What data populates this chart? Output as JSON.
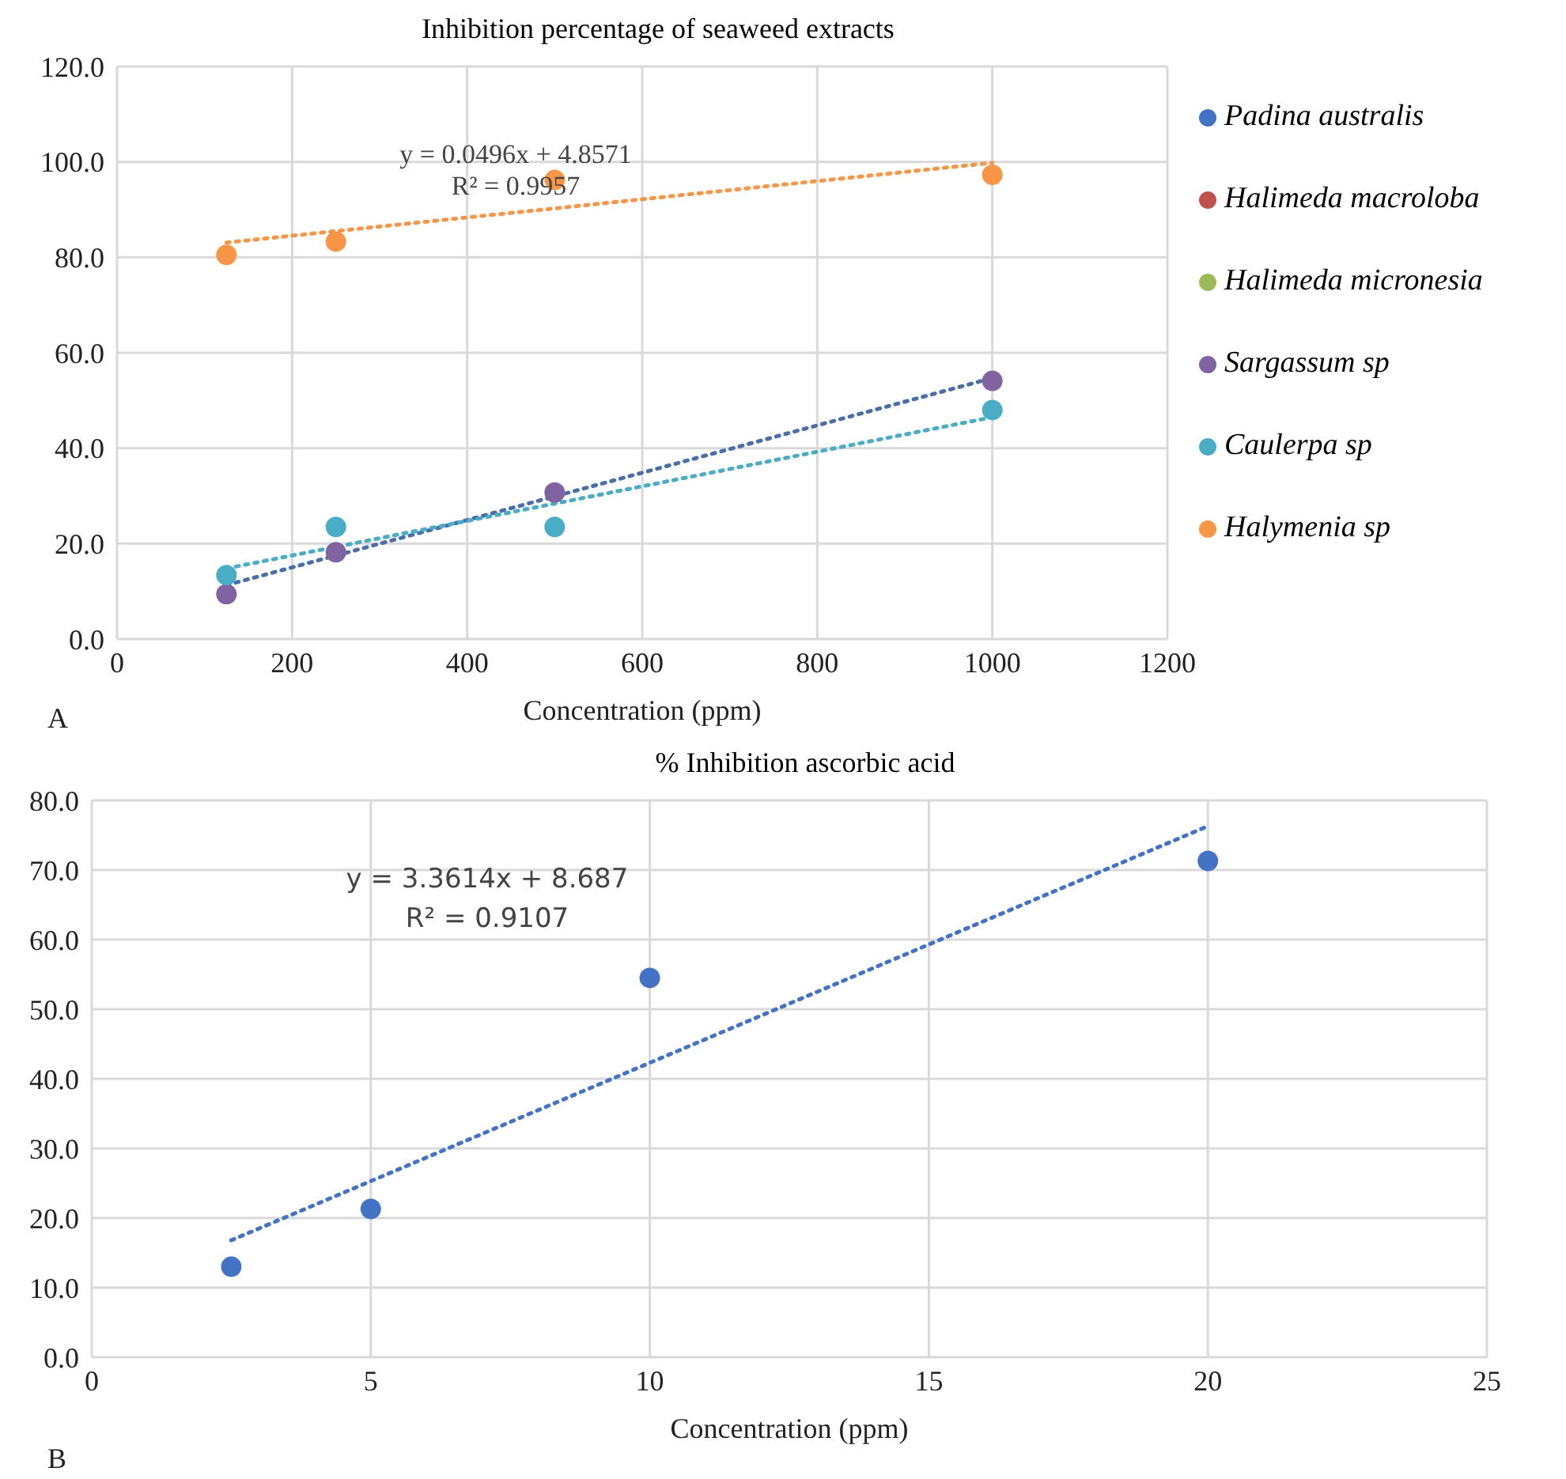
{
  "chart_data": [
    {
      "type": "scatter",
      "title": "Inhibition percentage of seaweed extracts",
      "xlabel": "Concentration (ppm)",
      "xlim": [
        0,
        1200
      ],
      "xticks": [
        0,
        200,
        400,
        600,
        800,
        1000,
        1200
      ],
      "ylim": [
        0,
        120
      ],
      "yticks": [
        {
          "value": 0,
          "label": "0.0"
        },
        {
          "value": 20,
          "label": "20.0"
        },
        {
          "value": 40,
          "label": "40.0"
        },
        {
          "value": 60,
          "label": "60.0"
        },
        {
          "value": 80,
          "label": "80.0"
        },
        {
          "value": 100,
          "label": "100.0"
        },
        {
          "value": 120,
          "label": "120.0"
        }
      ],
      "grid": true,
      "legend": "right",
      "annotations": [
        "y = 0.0496x + 4.8571",
        "R² = 0.9957",
        "A"
      ],
      "series": [
        {
          "name": "Padina australis",
          "color": "#4472c4",
          "marker": "circle"
        },
        {
          "name": "Halimeda macroloba",
          "color": "#c0504d",
          "marker": "circle"
        },
        {
          "name": "Halimeda micronesia",
          "color": "#9bbb59",
          "marker": "circle"
        },
        {
          "name": "Sargassum sp",
          "color": "#8064a2",
          "marker": "circle",
          "x": [
            125,
            250,
            500,
            1000
          ],
          "values": [
            9.4,
            18.2,
            30.7,
            54.1
          ]
        },
        {
          "name": "Caulerpa sp",
          "color": "#4bacc6",
          "marker": "circle",
          "x": [
            125,
            250,
            500,
            1000
          ],
          "values": [
            13.4,
            23.5,
            23.5,
            48.0
          ]
        },
        {
          "name": "Halymenia sp",
          "color": "#f79646",
          "marker": "circle",
          "x": [
            125,
            250,
            500,
            1000
          ],
          "values": [
            80.5,
            83.3,
            96.2,
            97.3
          ]
        },
        {
          "type": "line",
          "line_style": "dotted",
          "color": "#4a6fa8",
          "x": [
            125,
            1000
          ],
          "values": [
            11.3,
            54.7
          ]
        },
        {
          "type": "line",
          "line_style": "dotted",
          "color": "#4bacc6",
          "x": [
            125,
            1000
          ],
          "values": [
            14.8,
            46.5
          ]
        },
        {
          "type": "line",
          "line_style": "dotted",
          "color": "#f79646",
          "x": [
            125,
            1000
          ],
          "values": [
            83.1,
            99.8
          ]
        }
      ]
    },
    {
      "type": "scatter",
      "title": "% Inhibition ascorbic acid",
      "xlabel": "Concentration (ppm)",
      "xlim": [
        0,
        25
      ],
      "xticks": [
        0,
        5,
        10,
        15,
        20,
        25
      ],
      "ylim": [
        0,
        80
      ],
      "yticks": [
        {
          "value": 0,
          "label": "0.0"
        },
        {
          "value": 10,
          "label": "10.0"
        },
        {
          "value": 20,
          "label": "20.0"
        },
        {
          "value": 30,
          "label": "30.0"
        },
        {
          "value": 40,
          "label": "40.0"
        },
        {
          "value": 50,
          "label": "50.0"
        },
        {
          "value": 60,
          "label": "60.0"
        },
        {
          "value": 70,
          "label": "70.0"
        },
        {
          "value": 80,
          "label": "80.0"
        }
      ],
      "grid": true,
      "annotations": [
        "y = 3.3614x + 8.687",
        "R² = 0.9107",
        "B"
      ],
      "series": [
        {
          "color": "#4472c4",
          "marker": "circle",
          "x": [
            2.5,
            5,
            10,
            20
          ],
          "values": [
            13.0,
            21.3,
            54.5,
            71.3
          ]
        },
        {
          "type": "line",
          "line_style": "dotted",
          "color": "#4472c4",
          "x": [
            2.5,
            20
          ],
          "values": [
            16.8,
            76.3
          ]
        }
      ]
    }
  ]
}
